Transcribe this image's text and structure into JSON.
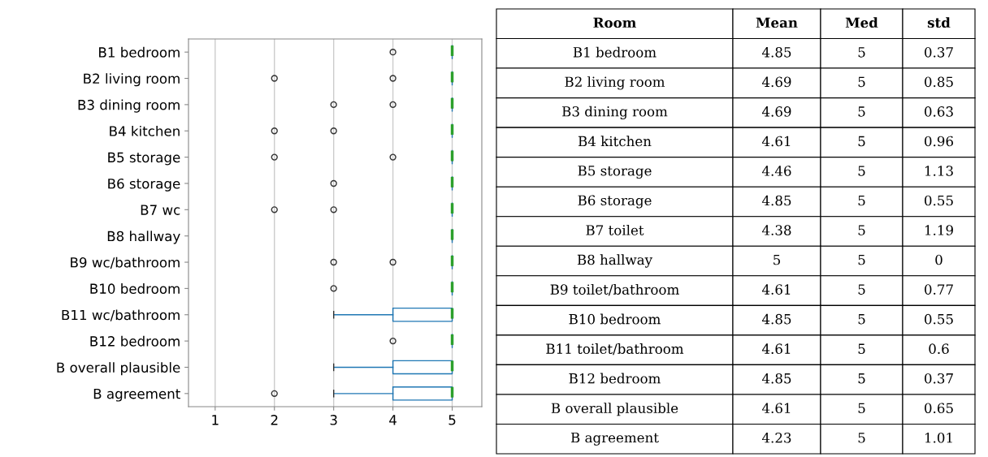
{
  "chart_data": [
    {
      "type": "box",
      "orientation": "horizontal",
      "categories": [
        "B1 bedroom",
        "B2 living room",
        "B3 dining room",
        "B4 kitchen",
        "B5 storage",
        "B6 storage",
        "B7 wc",
        "B8 hallway",
        "B9 wc/bathroom",
        "B10 bedroom",
        "B11 wc/bathroom",
        "B12 bedroom",
        "B overall plausible",
        "B agreement"
      ],
      "series": [
        {
          "color": "#1f77b4",
          "boxes": [
            {
              "low": 5,
              "q1": 5,
              "median": 5,
              "q3": 5,
              "high": 5,
              "outliers": [
                4
              ]
            },
            {
              "low": 5,
              "q1": 5,
              "median": 5,
              "q3": 5,
              "high": 5,
              "outliers": [
                2,
                4
              ]
            },
            {
              "low": 5,
              "q1": 5,
              "median": 5,
              "q3": 5,
              "high": 5,
              "outliers": [
                3,
                4
              ]
            },
            {
              "low": 5,
              "q1": 5,
              "median": 5,
              "q3": 5,
              "high": 5,
              "outliers": [
                2,
                3
              ]
            },
            {
              "low": 5,
              "q1": 5,
              "median": 5,
              "q3": 5,
              "high": 5,
              "outliers": [
                2,
                4
              ]
            },
            {
              "low": 5,
              "q1": 5,
              "median": 5,
              "q3": 5,
              "high": 5,
              "outliers": [
                3
              ]
            },
            {
              "low": 5,
              "q1": 5,
              "median": 5,
              "q3": 5,
              "high": 5,
              "outliers": [
                2,
                3
              ]
            },
            {
              "low": 5,
              "q1": 5,
              "median": 5,
              "q3": 5,
              "high": 5
            },
            {
              "low": 5,
              "q1": 5,
              "median": 5,
              "q3": 5,
              "high": 5,
              "outliers": [
                3,
                4
              ]
            },
            {
              "low": 5,
              "q1": 5,
              "median": 5,
              "q3": 5,
              "high": 5,
              "outliers": [
                3
              ]
            },
            {
              "low": 3,
              "q1": 4,
              "median": 5,
              "q3": 5,
              "high": 5
            },
            {
              "low": 5,
              "q1": 5,
              "median": 5,
              "q3": 5,
              "high": 5,
              "outliers": [
                4
              ]
            },
            {
              "low": 3,
              "q1": 4,
              "median": 5,
              "q3": 5,
              "high": 5
            },
            {
              "low": 3,
              "q1": 4,
              "median": 5,
              "q3": 5,
              "high": 5,
              "outliers": [
                2
              ]
            }
          ]
        }
      ],
      "xlim": [
        0.55,
        5.5
      ],
      "xticks": [
        1,
        2,
        3,
        4,
        5
      ],
      "grid": "x",
      "marker": "circle"
    },
    {
      "type": "other",
      "categories": [
        "Room",
        "Mean",
        "Med",
        "std"
      ],
      "cell_labels": [
        [
          "B1 bedroom",
          "4.85",
          "5",
          "0.37"
        ],
        [
          "B2 living room",
          "4.69",
          "5",
          "0.85"
        ],
        [
          "B3 dining room",
          "4.69",
          "5",
          "0.63"
        ],
        [
          "B4 kitchen",
          "4.61",
          "5",
          "0.96"
        ],
        [
          "B5 storage",
          "4.46",
          "5",
          "1.13"
        ],
        [
          "B6 storage",
          "4.85",
          "5",
          "0.55"
        ],
        [
          "B7 toilet",
          "4.38",
          "5",
          "1.19"
        ],
        [
          "B8 hallway",
          "5",
          "5",
          "0"
        ],
        [
          "B9 toilet/bathroom",
          "4.61",
          "5",
          "0.77"
        ],
        [
          "B10 bedroom",
          "4.85",
          "5",
          "0.55"
        ],
        [
          "B11 toilet/bathroom",
          "4.61",
          "5",
          "0.6"
        ],
        [
          "B12 bedroom",
          "4.85",
          "5",
          "0.37"
        ],
        [
          "B overall plausible",
          "4.61",
          "5",
          "0.65"
        ],
        [
          "B agreement",
          "4.23",
          "5",
          "1.01"
        ]
      ]
    }
  ]
}
